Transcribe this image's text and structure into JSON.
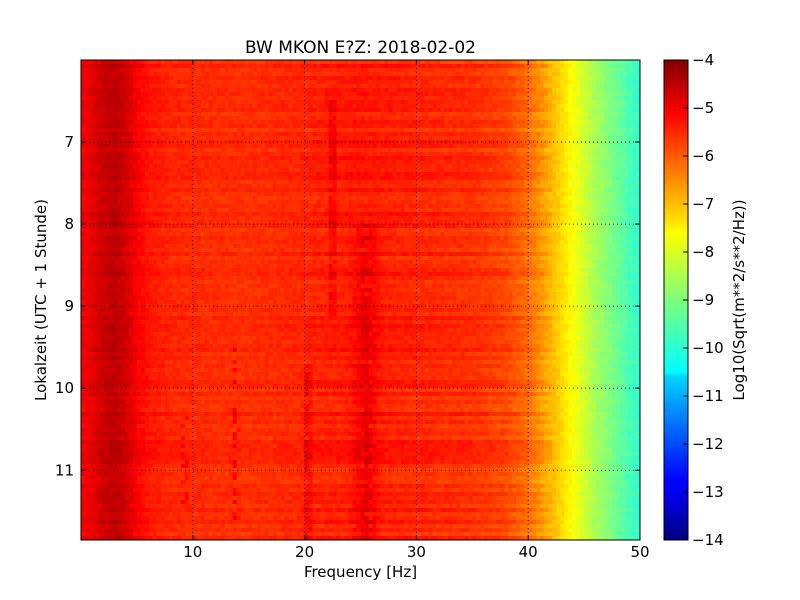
{
  "chart_data": {
    "type": "heatmap",
    "title": "BW MKON E?Z: 2018-02-02",
    "xlabel": "Frequency [Hz]",
    "ylabel": "Lokalzeit (UTC + 1 Stunde)",
    "xlim": [
      0,
      50
    ],
    "ylim": [
      11.85,
      6.0
    ],
    "y_axis_inverted": true,
    "x_ticks": [
      10,
      20,
      30,
      40,
      50
    ],
    "y_ticks": [
      7,
      8,
      9,
      10,
      11
    ],
    "grid": true,
    "colormap": "jet",
    "colorbar": {
      "label": "Log10(Sqrt(m**2/s**2/Hz))",
      "range": [
        -14,
        -4
      ],
      "ticks": [
        -4,
        -5,
        -6,
        -7,
        -8,
        -9,
        -10,
        -11,
        -12,
        -13,
        -14
      ]
    },
    "spectral_profile": {
      "frequency_hz": [
        0,
        2,
        3,
        4,
        5,
        6,
        8,
        10,
        15,
        20,
        25,
        30,
        35,
        38,
        40,
        42,
        44,
        46,
        48,
        50
      ],
      "log10_amplitude": [
        -5.2,
        -4.75,
        -4.6,
        -4.8,
        -5.2,
        -5.45,
        -5.6,
        -5.65,
        -5.7,
        -5.6,
        -5.5,
        -5.6,
        -5.7,
        -5.9,
        -6.3,
        -7.0,
        -7.8,
        -8.6,
        -9.2,
        -9.8
      ]
    },
    "features": [
      {
        "frequency_hz": 20.3,
        "time_range": [
          9.7,
          11.85
        ],
        "kind": "narrow band"
      },
      {
        "frequency_hz": 22.5,
        "time_range": [
          6.5,
          9.1
        ],
        "kind": "narrow band"
      },
      {
        "frequency_hz": 25.5,
        "time_range": [
          8.0,
          11.85
        ],
        "kind": "broad band"
      },
      {
        "frequency_hz": 13.8,
        "time_range": [
          9.5,
          11.6
        ],
        "kind": "intermittent line"
      },
      {
        "frequency_hz": 9.3,
        "time_range": [
          10.3,
          11.4
        ],
        "kind": "intermittent line"
      }
    ]
  }
}
